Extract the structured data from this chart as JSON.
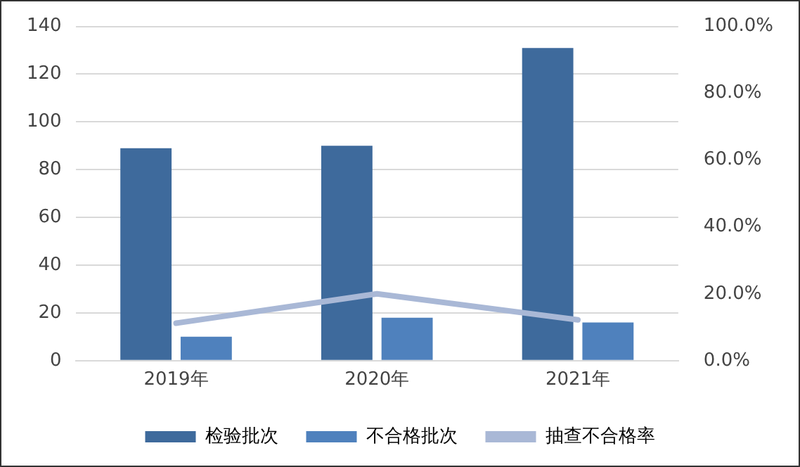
{
  "chart_data": {
    "type": "bar",
    "categories": [
      "2019年",
      "2020年",
      "2021年"
    ],
    "series": [
      {
        "name": "检验批次",
        "color": "#3e6a9c",
        "values": [
          89,
          90,
          131
        ]
      },
      {
        "name": "不合格批次",
        "color": "#4f81bd",
        "values": [
          10,
          18,
          16
        ]
      },
      {
        "name": "抽查不合格率",
        "type": "line",
        "axis": "y2",
        "color": "#a9b8d6",
        "values": [
          11.2,
          20.0,
          12.2
        ]
      }
    ],
    "ylim": [
      0,
      140
    ],
    "yticks": [
      0,
      20,
      40,
      60,
      80,
      100,
      120,
      140
    ],
    "y2lim": [
      0,
      100
    ],
    "y2ticks": [
      {
        "value": 0,
        "label": "0.0%"
      },
      {
        "value": 20,
        "label": "20.0%"
      },
      {
        "value": 40,
        "label": "40.0%"
      },
      {
        "value": 60,
        "label": "60.0%"
      },
      {
        "value": 80,
        "label": "80.0%"
      },
      {
        "value": 100,
        "label": "100.0%"
      }
    ],
    "grid": "y",
    "legend": "bottom",
    "marker": "none",
    "line_style": "solid"
  }
}
